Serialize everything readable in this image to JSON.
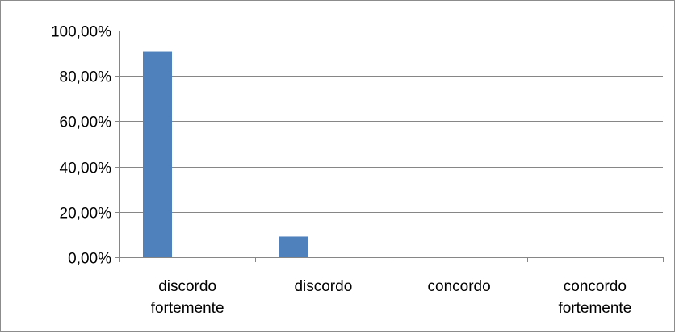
{
  "chart_data": {
    "type": "bar",
    "categories": [
      [
        "discordo",
        "fortemente"
      ],
      [
        "discordo"
      ],
      [
        "concordo"
      ],
      [
        "concordo",
        "fortemente"
      ]
    ],
    "values": [
      0.9091,
      0.0909,
      0,
      0
    ],
    "value_format": "percent_2dp_comma",
    "ylim": [
      0,
      1
    ],
    "yticks": [
      0,
      0.2,
      0.4,
      0.6,
      0.8,
      1.0
    ],
    "ytick_labels": [
      "0,00%",
      "20,00%",
      "40,00%",
      "60,00%",
      "80,00%",
      "100,00%"
    ],
    "grid": true,
    "legend": "none",
    "bar_color": "#4f81bd",
    "grid_color": "#868686",
    "axis_color": "#868686"
  }
}
